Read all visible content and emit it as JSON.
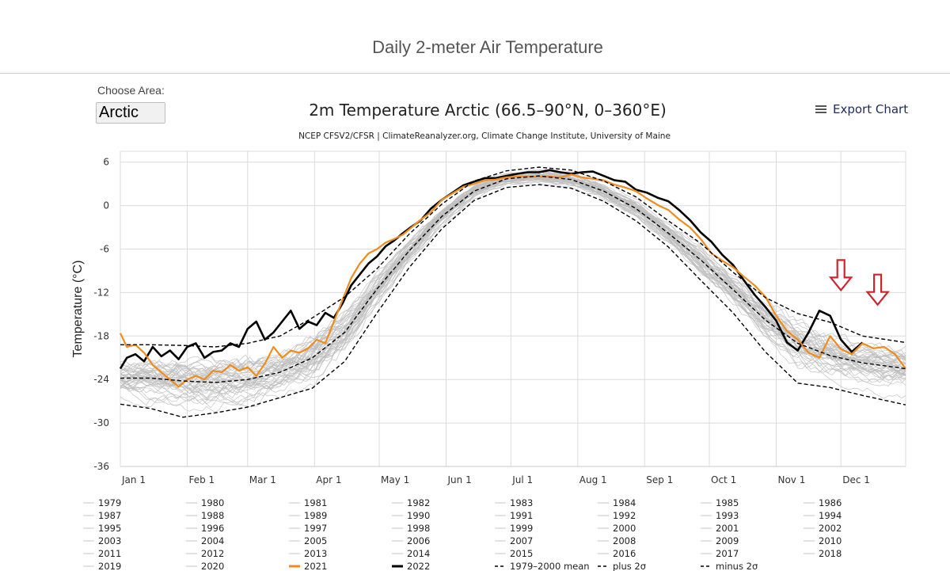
{
  "header": {
    "page_title": "Daily 2-meter Air Temperature"
  },
  "area": {
    "label": "Choose Area:",
    "selected": "Arctic"
  },
  "export": {
    "label": "Export Chart"
  },
  "chart_data": {
    "type": "line",
    "title": "2m Temperature Arctic (66.5–90°N, 0–360°E)",
    "subtitle": "NCEP CFSV2/CFSR | ClimateReanalyzer.org, Climate Change Institute, University of Maine",
    "ylabel": "Temperature (°C)",
    "xlabel": "",
    "xlim": [
      1,
      365
    ],
    "ylim": [
      -36,
      7.5
    ],
    "yticks": [
      6,
      0,
      -6,
      -12,
      -18,
      -24,
      -30,
      -36
    ],
    "xticks": [
      {
        "label": "Jan 1",
        "day": 1
      },
      {
        "label": "Feb 1",
        "day": 32
      },
      {
        "label": "Mar 1",
        "day": 60
      },
      {
        "label": "Apr 1",
        "day": 91
      },
      {
        "label": "May 1",
        "day": 121
      },
      {
        "label": "Jun 1",
        "day": 152
      },
      {
        "label": "Jul 1",
        "day": 182
      },
      {
        "label": "Aug 1",
        "day": 213
      },
      {
        "label": "Sep 1",
        "day": 244
      },
      {
        "label": "Oct 1",
        "day": 274
      },
      {
        "label": "Nov 1",
        "day": 305
      },
      {
        "label": "Dec 1",
        "day": 335
      }
    ],
    "grid": true,
    "series": [
      {
        "name": "2022",
        "color": "#000000",
        "style": "solid",
        "x": [
          1,
          4,
          8,
          12,
          16,
          20,
          24,
          28,
          32,
          36,
          40,
          44,
          48,
          52,
          56,
          60,
          64,
          68,
          72,
          76,
          80,
          84,
          88,
          92,
          96,
          100,
          104,
          108,
          112,
          116,
          120,
          124,
          128,
          132,
          136,
          140,
          145,
          150,
          155,
          160,
          165,
          170,
          175,
          180,
          185,
          190,
          195,
          200,
          205,
          210,
          215,
          220,
          225,
          230,
          235,
          240,
          245,
          250,
          255,
          260,
          265,
          270,
          275,
          280,
          285,
          290,
          295,
          300,
          305,
          310,
          315,
          320,
          325,
          330,
          335,
          340,
          345
        ],
        "values": [
          -22.5,
          -21,
          -20.5,
          -21.5,
          -19.5,
          -20.8,
          -20,
          -21.2,
          -19.5,
          -19,
          -21,
          -20.2,
          -20,
          -19,
          -19.5,
          -17,
          -16,
          -18.5,
          -17.5,
          -16,
          -14.5,
          -17,
          -16,
          -16.5,
          -14.8,
          -15.5,
          -13.5,
          -11,
          -9.5,
          -8,
          -7,
          -5.6,
          -4.8,
          -3.8,
          -2.9,
          -2.1,
          -0.4,
          0.8,
          1.8,
          2.8,
          3.3,
          3.8,
          3.8,
          4.1,
          4.4,
          4.6,
          4.6,
          4.9,
          4.6,
          4.4,
          4.6,
          4.7,
          4.1,
          3.5,
          3.3,
          2.2,
          1.8,
          1.1,
          0.6,
          -0.6,
          -2,
          -3.7,
          -5,
          -6.8,
          -8.2,
          -10.3,
          -12.3,
          -14,
          -15.9,
          -18.9,
          -20,
          -17.5,
          -14.5,
          -15.2,
          -18.5,
          -20.2,
          -18.9
        ]
      },
      {
        "name": "2021",
        "color": "#f08c1e",
        "style": "solid",
        "x": [
          1,
          4,
          8,
          12,
          16,
          20,
          24,
          28,
          32,
          36,
          40,
          44,
          48,
          52,
          56,
          60,
          64,
          68,
          72,
          76,
          80,
          84,
          88,
          92,
          96,
          100,
          104,
          108,
          112,
          116,
          120,
          124,
          128,
          132,
          136,
          140,
          145,
          150,
          155,
          160,
          165,
          170,
          175,
          180,
          185,
          190,
          195,
          200,
          205,
          210,
          215,
          220,
          225,
          230,
          235,
          240,
          245,
          250,
          255,
          260,
          265,
          270,
          275,
          280,
          285,
          290,
          295,
          300,
          305,
          310,
          315,
          320,
          325,
          330,
          335,
          340,
          345,
          350,
          355,
          360,
          365
        ],
        "values": [
          -17.6,
          -19.5,
          -19.2,
          -20.3,
          -22,
          -23,
          -24,
          -25,
          -24,
          -23.5,
          -24,
          -22.8,
          -23,
          -22,
          -22.8,
          -22.3,
          -23.5,
          -21.8,
          -19.5,
          -21,
          -20,
          -20.3,
          -19.7,
          -18.5,
          -19,
          -16,
          -13,
          -10,
          -8,
          -6.6,
          -6,
          -5.1,
          -4.6,
          -4,
          -3,
          -2,
          -0.9,
          0.8,
          1.7,
          2.6,
          3,
          3.5,
          3.6,
          3.9,
          4,
          4,
          4,
          4,
          3.9,
          4.3,
          3.9,
          3.7,
          3.5,
          2.9,
          2.5,
          2,
          1,
          0.1,
          -0.6,
          -1.9,
          -3,
          -4.6,
          -6.6,
          -7.6,
          -8.5,
          -9.8,
          -11,
          -12.6,
          -15.2,
          -17.3,
          -18.5,
          -20.3,
          -21,
          -18,
          -19.8,
          -20.5,
          -19,
          -19.7,
          -19.5,
          -20.5,
          -22.5
        ]
      },
      {
        "name": "1979–2000 mean",
        "color": "#000000",
        "style": "dashed",
        "x": [
          1,
          15,
          30,
          45,
          60,
          75,
          90,
          105,
          120,
          135,
          150,
          165,
          180,
          195,
          210,
          225,
          240,
          255,
          270,
          285,
          300,
          315,
          330,
          345,
          365
        ],
        "values": [
          -23.8,
          -23.8,
          -24.2,
          -24.4,
          -24,
          -23,
          -21,
          -17.5,
          -11.5,
          -6.2,
          -1.5,
          2,
          3.7,
          4.1,
          3.6,
          2,
          -0.4,
          -3.8,
          -7.5,
          -11.6,
          -15.8,
          -19,
          -20.7,
          -21.7,
          -22.5
        ]
      },
      {
        "name": "plus 2σ",
        "color": "#000000",
        "style": "dashed",
        "x": [
          1,
          15,
          30,
          45,
          60,
          75,
          90,
          105,
          120,
          135,
          150,
          165,
          180,
          195,
          210,
          225,
          240,
          255,
          270,
          285,
          300,
          315,
          330,
          345,
          365
        ],
        "values": [
          -19.2,
          -19.2,
          -19.3,
          -19.5,
          -19,
          -18,
          -15.5,
          -12.6,
          -8.7,
          -3.9,
          0.2,
          3.4,
          4.8,
          5.3,
          4.9,
          3.4,
          1.2,
          -2.1,
          -5.2,
          -9.2,
          -12.7,
          -14.9,
          -16.1,
          -18,
          -18.9
        ]
      },
      {
        "name": "minus 2σ",
        "color": "#000000",
        "style": "dashed",
        "x": [
          1,
          15,
          30,
          45,
          60,
          75,
          90,
          105,
          120,
          135,
          150,
          165,
          180,
          195,
          210,
          225,
          240,
          255,
          270,
          285,
          300,
          315,
          330,
          345,
          365
        ],
        "values": [
          -27.4,
          -28,
          -29.2,
          -28.6,
          -27.8,
          -26.5,
          -25.2,
          -21.5,
          -14.8,
          -8.5,
          -3.2,
          0.7,
          2.5,
          2.9,
          2.4,
          0.6,
          -2.1,
          -5.7,
          -10.3,
          -14.8,
          -20.2,
          -24.5,
          -25.1,
          -26.2,
          -27.5
        ]
      }
    ],
    "background_series_count": 43,
    "annotations": [
      {
        "type": "arrow-down",
        "color": "#d0232f",
        "day": 335,
        "value": -10.8
      },
      {
        "type": "arrow-down",
        "color": "#d0232f",
        "day": 352,
        "value": -12.8
      }
    ],
    "legend": {
      "placement": "bottom",
      "items": [
        "1979",
        "1980",
        "1981",
        "1982",
        "1983",
        "1984",
        "1985",
        "1986",
        "1987",
        "1988",
        "1989",
        "1990",
        "1991",
        "1992",
        "1993",
        "1994",
        "1995",
        "1996",
        "1997",
        "1998",
        "1999",
        "2000",
        "2001",
        "2002",
        "2003",
        "2004",
        "2005",
        "2006",
        "2007",
        "2008",
        "2009",
        "2010",
        "2011",
        "2012",
        "2013",
        "2014",
        "2015",
        "2016",
        "2017",
        "2018",
        "2019",
        "2020",
        "2021",
        "2022",
        "1979–2000 mean",
        "plus 2σ",
        "minus 2σ"
      ],
      "highlight": {
        "2021": "#f08c1e",
        "2022": "#000000",
        "1979–2000 mean": "dashed",
        "plus 2σ": "dashed",
        "minus 2σ": "dashed"
      }
    }
  }
}
